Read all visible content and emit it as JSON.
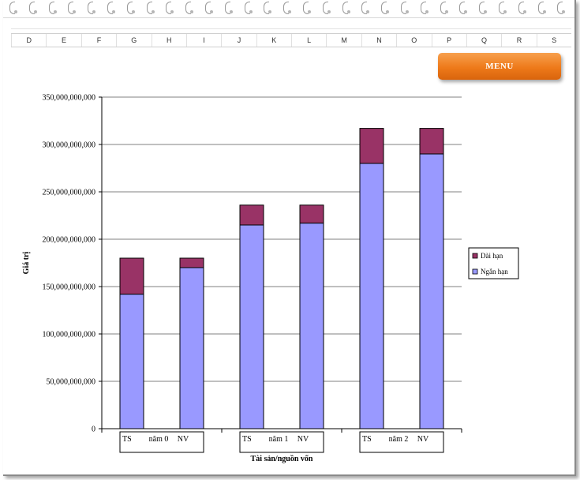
{
  "sheet": {
    "columns": [
      "D",
      "E",
      "F",
      "G",
      "H",
      "I",
      "J",
      "K",
      "L",
      "M",
      "N",
      "O",
      "P",
      "Q",
      "R",
      "S"
    ]
  },
  "menu": {
    "label": "MENU"
  },
  "colors": {
    "short_term": "#9999ff",
    "long_term": "#993366",
    "menu_orange": "#ee7a1a"
  },
  "chart_data": {
    "type": "bar",
    "stacked": true,
    "title": "",
    "xlabel": "Tài sản/nguồn vốn",
    "ylabel": "Giá trị",
    "ylim": [
      0,
      350000000000
    ],
    "ytick_step": 50000000000,
    "ytick_labels": [
      "0",
      "50,000,000,000",
      "100,000,000,000",
      "150,000,000,000",
      "200,000,000,000",
      "250,000,000,000",
      "300,000,000,000",
      "350,000,000,000"
    ],
    "grid": true,
    "legend_position": "right",
    "groups": [
      {
        "label": "năm 0",
        "categories": [
          "TS",
          "NV"
        ]
      },
      {
        "label": "năm 1",
        "categories": [
          "TS",
          "NV"
        ]
      },
      {
        "label": "năm 2",
        "categories": [
          "TS",
          "NV"
        ]
      }
    ],
    "series": [
      {
        "name": "Ngắn hạn",
        "color": "#9999ff",
        "values": [
          142000000000,
          170000000000,
          215000000000,
          217000000000,
          280000000000,
          290000000000
        ]
      },
      {
        "name": "Dài hạn",
        "color": "#993366",
        "values": [
          38000000000,
          10000000000,
          21000000000,
          19000000000,
          37000000000,
          27000000000
        ]
      }
    ],
    "legend_order": [
      "Dài hạn",
      "Ngắn hạn"
    ]
  }
}
